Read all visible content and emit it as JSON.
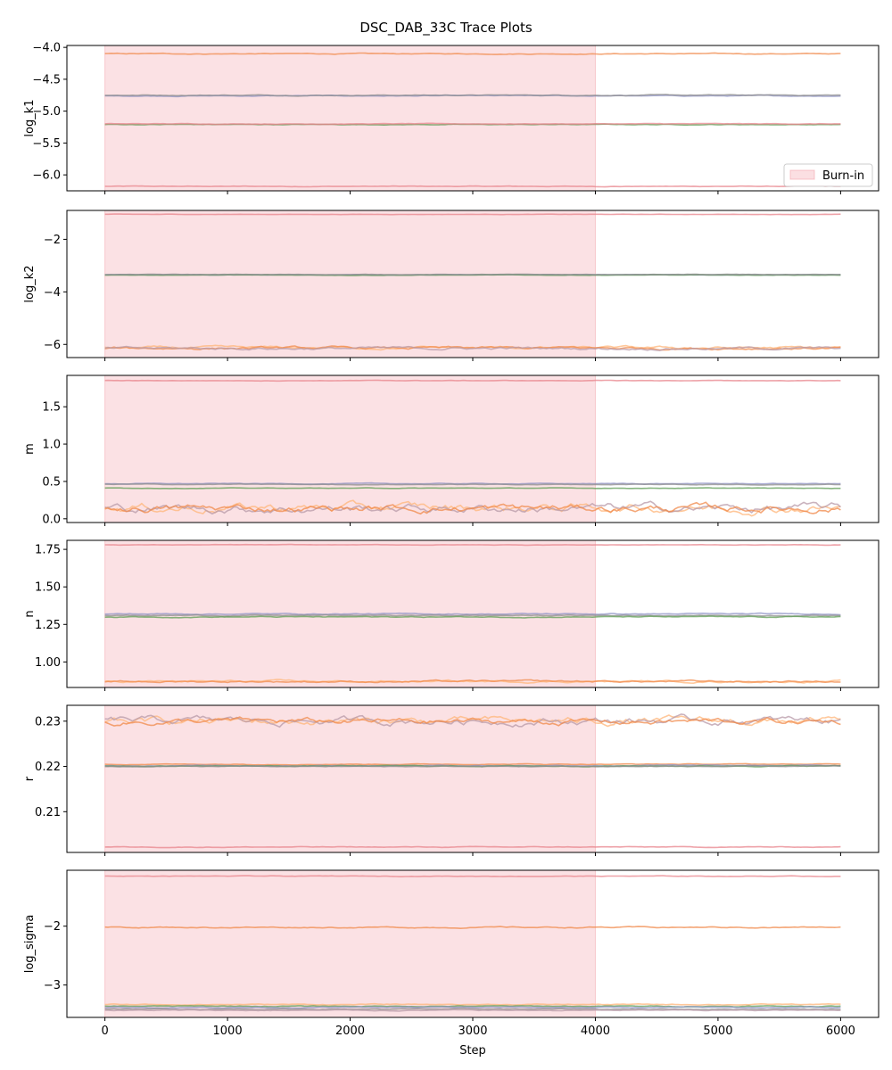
{
  "chart_data": {
    "type": "line",
    "title": "DSC_DAB_33C Trace Plots",
    "xlabel": "Step",
    "xlim": [
      -310,
      6310
    ],
    "xticks": [
      0,
      1000,
      2000,
      3000,
      4000,
      5000,
      6000
    ],
    "burn_in": {
      "label": "Burn-in",
      "start": 0,
      "end": 4000,
      "color": "#f4a3ac"
    },
    "legend_position": "lower-right",
    "walker_colors": [
      "#e8848c",
      "#f08a4b",
      "#8d92c6",
      "#5f9e55",
      "#ffb57a",
      "#b89aa8",
      "#8c8c8c"
    ],
    "panels": [
      {
        "ylabel": "log_k1",
        "ylim": [
          -6.25,
          -3.97
        ],
        "yticks": [
          -6.0,
          -5.5,
          -5.0,
          -4.5,
          -4.0
        ],
        "ytick_labels": [
          "−6.0",
          "−5.5",
          "−5.0",
          "−4.5",
          "−4.0"
        ],
        "legend": true,
        "traces": [
          {
            "level": -6.18,
            "noise": 0.003,
            "color": "#e8848c"
          },
          {
            "level": -4.1,
            "noise": 0.004,
            "color": "#f08a4b"
          },
          {
            "level": -4.76,
            "noise": 0.004,
            "color": "#8d92c6"
          },
          {
            "level": -4.75,
            "noise": 0.004,
            "color": "#8c8c8c"
          },
          {
            "level": -5.21,
            "noise": 0.003,
            "color": "#5f9e55"
          },
          {
            "level": -5.2,
            "noise": 0.003,
            "color": "#e8848c"
          }
        ]
      },
      {
        "ylabel": "log_k2",
        "ylim": [
          -6.5,
          -0.9
        ],
        "yticks": [
          -6,
          -4,
          -2
        ],
        "ytick_labels": [
          "−6",
          "−4",
          "−2"
        ],
        "traces": [
          {
            "level": -1.05,
            "noise": 0.004,
            "color": "#e8848c"
          },
          {
            "level": -3.35,
            "noise": 0.005,
            "color": "#8d92c6"
          },
          {
            "level": -3.36,
            "noise": 0.005,
            "color": "#5f9e55"
          },
          {
            "level": -3.34,
            "noise": 0.005,
            "color": "#8c8c8c"
          },
          {
            "level": -6.13,
            "noise": 0.03,
            "color": "#ffb57a"
          },
          {
            "level": -6.14,
            "noise": 0.03,
            "color": "#f08a4b"
          },
          {
            "level": -6.15,
            "noise": 0.03,
            "color": "#b89aa8"
          }
        ]
      },
      {
        "ylabel": "m",
        "ylim": [
          -0.05,
          1.92
        ],
        "yticks": [
          0.0,
          0.5,
          1.0,
          1.5
        ],
        "ytick_labels": [
          "0.0",
          "0.5",
          "1.0",
          "1.5"
        ],
        "traces": [
          {
            "level": 1.85,
            "noise": 0.002,
            "color": "#e8848c"
          },
          {
            "level": 0.47,
            "noise": 0.003,
            "color": "#8d92c6"
          },
          {
            "level": 0.46,
            "noise": 0.003,
            "color": "#8c8c8c"
          },
          {
            "level": 0.41,
            "noise": 0.002,
            "color": "#5f9e55"
          },
          {
            "level": 0.15,
            "noise": 0.035,
            "color": "#ffb57a"
          },
          {
            "level": 0.14,
            "noise": 0.035,
            "color": "#b89aa8"
          },
          {
            "level": 0.14,
            "noise": 0.03,
            "color": "#f08a4b"
          }
        ]
      },
      {
        "ylabel": "n",
        "ylim": [
          0.83,
          1.81
        ],
        "yticks": [
          1.0,
          1.25,
          1.5,
          1.75
        ],
        "ytick_labels": [
          "1.00",
          "1.25",
          "1.50",
          "1.75"
        ],
        "traces": [
          {
            "level": 1.78,
            "noise": 0.001,
            "color": "#e8848c"
          },
          {
            "level": 1.32,
            "noise": 0.002,
            "color": "#8d92c6"
          },
          {
            "level": 1.31,
            "noise": 0.002,
            "color": "#8c8c8c"
          },
          {
            "level": 1.3,
            "noise": 0.002,
            "color": "#5f9e55"
          },
          {
            "level": 0.87,
            "noise": 0.004,
            "color": "#ffb57a"
          },
          {
            "level": 0.87,
            "noise": 0.004,
            "color": "#f08a4b"
          }
        ]
      },
      {
        "ylabel": "r",
        "ylim": [
          0.201,
          0.2335
        ],
        "yticks": [
          0.21,
          0.22,
          0.23
        ],
        "ytick_labels": [
          "0.21",
          "0.22",
          "0.23"
        ],
        "traces": [
          {
            "level": 0.2022,
            "noise": 5e-05,
            "color": "#e8848c"
          },
          {
            "level": 0.2205,
            "noise": 5e-05,
            "color": "#f08a4b"
          },
          {
            "level": 0.2202,
            "noise": 6e-05,
            "color": "#8d92c6"
          },
          {
            "level": 0.2201,
            "noise": 6e-05,
            "color": "#5f9e55"
          },
          {
            "level": 0.22,
            "noise": 6e-05,
            "color": "#8c8c8c"
          },
          {
            "level": 0.23,
            "noise": 0.0005,
            "color": "#ffb57a"
          },
          {
            "level": 0.2301,
            "noise": 0.0005,
            "color": "#b89aa8"
          },
          {
            "level": 0.2299,
            "noise": 0.0004,
            "color": "#f08a4b"
          }
        ]
      },
      {
        "ylabel": "log_sigma",
        "ylim": [
          -3.55,
          -1.05
        ],
        "yticks": [
          -3,
          -2
        ],
        "ytick_labels": [
          "−3",
          "−2"
        ],
        "traces": [
          {
            "level": -1.15,
            "noise": 0.003,
            "color": "#e8848c"
          },
          {
            "level": -2.02,
            "noise": 0.006,
            "color": "#f08a4b"
          },
          {
            "level": -3.33,
            "noise": 0.005,
            "color": "#ffb57a"
          },
          {
            "level": -3.36,
            "noise": 0.005,
            "color": "#5f9e55"
          },
          {
            "level": -3.38,
            "noise": 0.005,
            "color": "#8d92c6"
          },
          {
            "level": -3.41,
            "noise": 0.005,
            "color": "#8c8c8c"
          },
          {
            "level": -3.43,
            "noise": 0.005,
            "color": "#b89aa8"
          }
        ]
      }
    ]
  }
}
